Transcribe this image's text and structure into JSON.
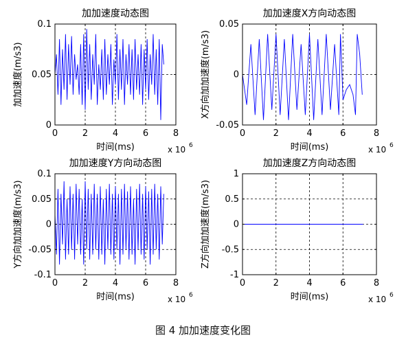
{
  "figure": {
    "caption": "图 4  加加速度变化图"
  },
  "chart_data": [
    {
      "type": "line",
      "title": "加加速度动态图",
      "xlabel": "时间(ms)",
      "ylabel": "加加速度(m/s3)",
      "x_multiplier": "x 10",
      "x_multiplier_exp": "6",
      "xlim": [
        0,
        8
      ],
      "ylim": [
        0,
        0.1
      ],
      "xticks": [
        0,
        2,
        4,
        6,
        8
      ],
      "yticks": [
        0,
        0.05,
        0.1
      ],
      "ytick_labels": [
        "0",
        "0.05",
        "0.1"
      ],
      "grid": true,
      "line_color": "#0000ff",
      "series": [
        {
          "x": [
            0,
            0.1,
            0.2,
            0.3,
            0.4,
            0.5,
            0.6,
            0.7,
            0.8,
            0.9,
            1.0,
            1.1,
            1.2,
            1.3,
            1.4,
            1.5,
            1.6,
            1.7,
            1.8,
            1.9,
            2.0,
            2.1,
            2.2,
            2.3,
            2.4,
            2.5,
            2.6,
            2.7,
            2.8,
            2.9,
            3.0,
            3.1,
            3.2,
            3.3,
            3.4,
            3.5,
            3.6,
            3.7,
            3.8,
            3.9,
            4.0,
            4.1,
            4.2,
            4.3,
            4.4,
            4.5,
            4.6,
            4.7,
            4.8,
            4.9,
            5.0,
            5.1,
            5.2,
            5.3,
            5.4,
            5.5,
            5.6,
            5.7,
            5.8,
            5.9,
            6.0,
            6.1,
            6.2,
            6.3,
            6.4,
            6.5,
            6.6,
            6.7,
            6.8,
            6.9,
            7.0,
            7.1,
            7.2
          ],
          "y": [
            0.05,
            0.07,
            0.03,
            0.085,
            0.02,
            0.075,
            0.035,
            0.09,
            0.025,
            0.08,
            0.04,
            0.088,
            0.03,
            0.07,
            0.045,
            0.06,
            0.03,
            0.08,
            0.02,
            0.09,
            0.015,
            0.095,
            0.035,
            0.08,
            0.025,
            0.07,
            0.04,
            0.09,
            0.02,
            0.06,
            0.035,
            0.075,
            0.025,
            0.085,
            0.03,
            0.07,
            0.04,
            0.08,
            0.02,
            0.065,
            0.04,
            0.09,
            0.025,
            0.075,
            0.035,
            0.085,
            0.02,
            0.07,
            0.04,
            0.08,
            0.03,
            0.075,
            0.025,
            0.085,
            0.035,
            0.07,
            0.03,
            0.08,
            0.02,
            0.075,
            0.035,
            0.085,
            0.025,
            0.07,
            0.04,
            0.09,
            0.03,
            0.075,
            0.02,
            0.085,
            0.005,
            0.08,
            0.06
          ]
        }
      ]
    },
    {
      "type": "line",
      "title": "加加速度X方向动态图",
      "xlabel": "时间(ms)",
      "ylabel": "X方向加加速度(m/s3)",
      "x_multiplier": "x 10",
      "x_multiplier_exp": "6",
      "xlim": [
        0,
        8
      ],
      "ylim": [
        -0.05,
        0.05
      ],
      "xticks": [
        0,
        2,
        4,
        6,
        8
      ],
      "yticks": [
        -0.05,
        0,
        0.05
      ],
      "ytick_labels": [
        "-0.05",
        "0",
        "0.05"
      ],
      "grid": true,
      "line_color": "#0000ff",
      "series": [
        {
          "x": [
            0,
            0.25,
            0.5,
            0.75,
            1.0,
            1.25,
            1.5,
            1.75,
            2.0,
            2.25,
            2.5,
            2.75,
            3.0,
            3.25,
            3.5,
            3.75,
            4.0,
            4.25,
            4.5,
            4.75,
            5.0,
            5.25,
            5.5,
            5.75,
            5.85,
            6.0,
            6.2,
            6.4,
            6.6,
            6.75,
            6.85,
            7.0,
            7.15
          ],
          "y": [
            0,
            -0.03,
            0.03,
            -0.04,
            0.035,
            -0.045,
            0.04,
            -0.035,
            0.04,
            -0.04,
            0.035,
            -0.045,
            0.04,
            -0.035,
            0.03,
            -0.04,
            0.04,
            -0.045,
            0.035,
            -0.04,
            0.04,
            -0.035,
            0.03,
            -0.04,
            0.04,
            -0.025,
            -0.015,
            -0.01,
            -0.02,
            -0.04,
            0.04,
            0.02,
            -0.02
          ]
        }
      ]
    },
    {
      "type": "line",
      "title": "加加速度Y方向动态图",
      "xlabel": "时间(ms)",
      "ylabel": "Y方向加加速度(m/s3)",
      "x_multiplier": "x 10",
      "x_multiplier_exp": "6",
      "xlim": [
        0,
        8
      ],
      "ylim": [
        -0.1,
        0.1
      ],
      "xticks": [
        0,
        2,
        4,
        6,
        8
      ],
      "yticks": [
        -0.1,
        -0.05,
        0,
        0.05,
        0.1
      ],
      "ytick_labels": [
        "-0.1",
        "-0.05",
        "0",
        "0.05",
        "0.1"
      ],
      "grid": true,
      "line_color": "#0000ff",
      "series": [
        {
          "x": [
            0,
            0.1,
            0.2,
            0.3,
            0.4,
            0.5,
            0.6,
            0.7,
            0.8,
            0.9,
            1.0,
            1.1,
            1.2,
            1.3,
            1.4,
            1.5,
            1.6,
            1.7,
            1.8,
            1.9,
            2.0,
            2.1,
            2.2,
            2.3,
            2.4,
            2.5,
            2.6,
            2.7,
            2.8,
            2.9,
            3.0,
            3.1,
            3.2,
            3.3,
            3.4,
            3.5,
            3.6,
            3.7,
            3.8,
            3.9,
            4.0,
            4.1,
            4.2,
            4.3,
            4.4,
            4.5,
            4.6,
            4.7,
            4.8,
            4.9,
            5.0,
            5.1,
            5.2,
            5.3,
            5.4,
            5.5,
            5.6,
            5.7,
            5.8,
            5.9,
            6.0,
            6.1,
            6.2,
            6.3,
            6.4,
            6.5,
            6.6,
            6.7,
            6.8,
            6.9,
            7.0,
            7.1,
            7.2
          ],
          "y": [
            0.02,
            -0.06,
            0.07,
            -0.08,
            0.06,
            -0.04,
            0.085,
            -0.07,
            0.05,
            -0.06,
            0.075,
            -0.05,
            0.06,
            -0.07,
            0.08,
            -0.04,
            0.07,
            -0.06,
            0.05,
            -0.08,
            0.085,
            -0.05,
            0.07,
            -0.07,
            0.06,
            -0.06,
            0.08,
            -0.05,
            0.06,
            -0.07,
            0.075,
            -0.06,
            0.05,
            -0.08,
            0.07,
            -0.05,
            0.08,
            -0.06,
            0.06,
            -0.07,
            0.075,
            -0.05,
            0.06,
            -0.08,
            0.07,
            -0.06,
            0.08,
            -0.05,
            0.065,
            -0.07,
            0.075,
            -0.06,
            0.05,
            -0.08,
            0.07,
            -0.05,
            0.08,
            -0.06,
            0.06,
            -0.07,
            0.075,
            -0.05,
            0.065,
            -0.08,
            0.07,
            -0.06,
            0.08,
            -0.05,
            0.06,
            -0.07,
            0.075,
            -0.04,
            0.06
          ]
        }
      ]
    },
    {
      "type": "line",
      "title": "加加速度Z方向动态图",
      "xlabel": "时间(ms)",
      "ylabel": "Z方向加加速度(m/s3)",
      "x_multiplier": "x 10",
      "x_multiplier_exp": "6",
      "xlim": [
        0,
        8
      ],
      "ylim": [
        -1,
        1
      ],
      "xticks": [
        0,
        2,
        4,
        6,
        8
      ],
      "yticks": [
        -1,
        -0.5,
        0,
        0.5,
        1
      ],
      "ytick_labels": [
        "-1",
        "-0.5",
        "0",
        "0.5",
        "1"
      ],
      "grid": true,
      "line_color": "#0000ff",
      "series": [
        {
          "x": [
            0,
            7.2
          ],
          "y": [
            0,
            0
          ]
        }
      ]
    }
  ]
}
